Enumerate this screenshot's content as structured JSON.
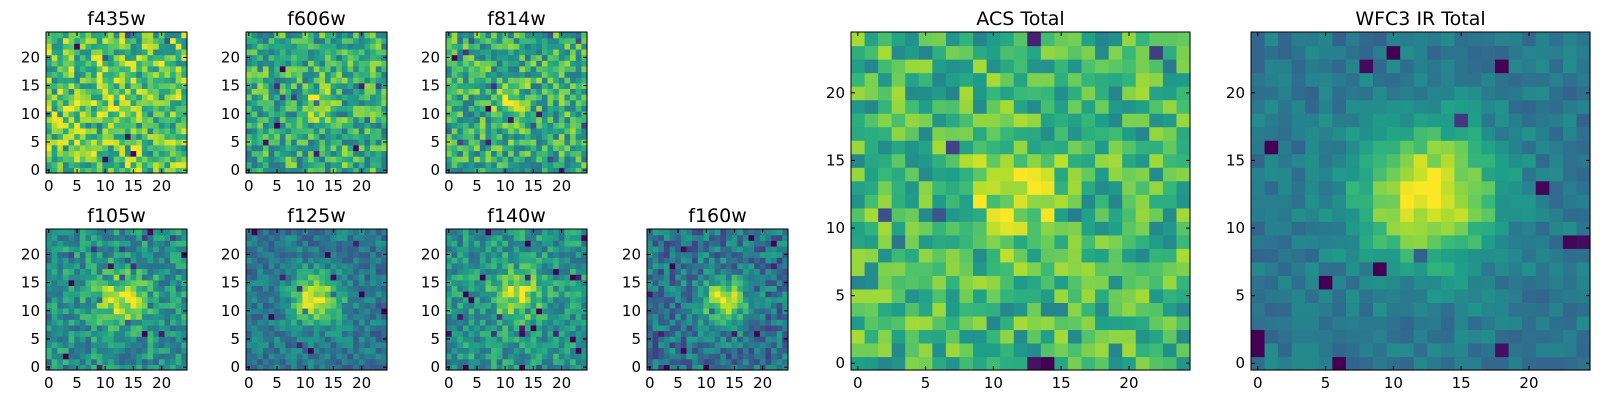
{
  "chart_data": {
    "type": "heatmap",
    "colormap": "viridis",
    "colors": {
      "low": "#440154",
      "mid": "#21918c",
      "high": "#fde725"
    },
    "grid_size": 25,
    "panels": [
      {
        "id": "f435w",
        "title": "f435w",
        "xlim": [
          0,
          24
        ],
        "ylim": [
          0,
          24
        ],
        "xticks": [
          0,
          5,
          10,
          15,
          20
        ],
        "xtick_labels": [
          "0",
          "5",
          "10",
          "15",
          "20"
        ],
        "yticks": [
          0,
          5,
          10,
          15,
          20
        ],
        "ytick_labels": [
          "0",
          "5",
          "10",
          "15",
          "20"
        ],
        "source": {
          "center": [
            12,
            12
          ],
          "sigma": 3,
          "amplitude": 0.05
        },
        "background": 0.72,
        "noise": 0.55,
        "seed": 11
      },
      {
        "id": "f606w",
        "title": "f606w",
        "xlim": [
          0,
          24
        ],
        "ylim": [
          0,
          24
        ],
        "xticks": [
          0,
          5,
          10,
          15,
          20
        ],
        "xtick_labels": [
          "0",
          "5",
          "10",
          "15",
          "20"
        ],
        "yticks": [
          0,
          5,
          10,
          15,
          20
        ],
        "ytick_labels": [
          "0",
          "5",
          "10",
          "15",
          "20"
        ],
        "source": {
          "center": [
            12,
            12
          ],
          "sigma": 2,
          "amplitude": 0.22
        },
        "background": 0.62,
        "noise": 0.5,
        "seed": 23
      },
      {
        "id": "f814w",
        "title": "f814w",
        "xlim": [
          0,
          24
        ],
        "ylim": [
          0,
          24
        ],
        "xticks": [
          0,
          5,
          10,
          15,
          20
        ],
        "xtick_labels": [
          "0",
          "5",
          "10",
          "15",
          "20"
        ],
        "yticks": [
          0,
          5,
          10,
          15,
          20
        ],
        "ytick_labels": [
          "0",
          "5",
          "10",
          "15",
          "20"
        ],
        "source": {
          "center": [
            11,
            12
          ],
          "sigma": 2,
          "amplitude": 0.28
        },
        "background": 0.62,
        "noise": 0.5,
        "seed": 37
      },
      {
        "id": "f105w",
        "title": "f105w",
        "xlim": [
          0,
          24
        ],
        "ylim": [
          0,
          24
        ],
        "xticks": [
          0,
          5,
          10,
          15,
          20
        ],
        "xtick_labels": [
          "0",
          "5",
          "10",
          "15",
          "20"
        ],
        "yticks": [
          0,
          5,
          10,
          15,
          20
        ],
        "ytick_labels": [
          "0",
          "5",
          "10",
          "15",
          "20"
        ],
        "source": {
          "center": [
            13,
            12
          ],
          "sigma": 3.2,
          "amplitude": 0.42
        },
        "background": 0.5,
        "noise": 0.38,
        "seed": 41
      },
      {
        "id": "f125w",
        "title": "f125w",
        "xlim": [
          0,
          24
        ],
        "ylim": [
          0,
          24
        ],
        "xticks": [
          0,
          5,
          10,
          15,
          20
        ],
        "xtick_labels": [
          "0",
          "5",
          "10",
          "15",
          "20"
        ],
        "yticks": [
          0,
          5,
          10,
          15,
          20
        ],
        "ytick_labels": [
          "0",
          "5",
          "10",
          "15",
          "20"
        ],
        "source": {
          "center": [
            12,
            12
          ],
          "sigma": 3.2,
          "amplitude": 0.55
        },
        "background": 0.4,
        "noise": 0.3,
        "seed": 53
      },
      {
        "id": "f140w",
        "title": "f140w",
        "xlim": [
          0,
          24
        ],
        "ylim": [
          0,
          24
        ],
        "xticks": [
          0,
          5,
          10,
          15,
          20
        ],
        "xtick_labels": [
          "0",
          "5",
          "10",
          "15",
          "20"
        ],
        "yticks": [
          0,
          5,
          10,
          15,
          20
        ],
        "ytick_labels": [
          "0",
          "5",
          "10",
          "15",
          "20"
        ],
        "source": {
          "center": [
            12,
            13
          ],
          "sigma": 3,
          "amplitude": 0.38
        },
        "background": 0.52,
        "noise": 0.36,
        "seed": 67
      },
      {
        "id": "f160w",
        "title": "f160w",
        "xlim": [
          0,
          24
        ],
        "ylim": [
          0,
          24
        ],
        "xticks": [
          0,
          5,
          10,
          15,
          20
        ],
        "xtick_labels": [
          "0",
          "5",
          "10",
          "15",
          "20"
        ],
        "yticks": [
          0,
          5,
          10,
          15,
          20
        ],
        "ytick_labels": [
          "0",
          "5",
          "10",
          "15",
          "20"
        ],
        "source": {
          "center": [
            13,
            12
          ],
          "sigma": 2.8,
          "amplitude": 0.55
        },
        "background": 0.38,
        "noise": 0.4,
        "seed": 79
      },
      {
        "id": "acs-total",
        "title": "ACS Total",
        "xlim": [
          0,
          24
        ],
        "ylim": [
          0,
          24
        ],
        "xticks": [
          0,
          5,
          10,
          15,
          20
        ],
        "xtick_labels": [
          "0",
          "5",
          "10",
          "15",
          "20"
        ],
        "yticks": [
          0,
          5,
          10,
          15,
          20
        ],
        "ytick_labels": [
          "0",
          "5",
          "10",
          "15",
          "20"
        ],
        "source": {
          "center": [
            11.5,
            12
          ],
          "sigma": 2.2,
          "amplitude": 0.3
        },
        "background": 0.66,
        "noise": 0.42,
        "seed": 97
      },
      {
        "id": "wfc3-ir-total",
        "title": "WFC3 IR Total",
        "xlim": [
          0,
          24
        ],
        "ylim": [
          0,
          24
        ],
        "xticks": [
          0,
          5,
          10,
          15,
          20
        ],
        "xtick_labels": [
          "0",
          "5",
          "10",
          "15",
          "20"
        ],
        "yticks": [
          0,
          5,
          10,
          15,
          20
        ],
        "ytick_labels": [
          "0",
          "5",
          "10",
          "15",
          "20"
        ],
        "source": {
          "center": [
            12.5,
            12.5
          ],
          "sigma": 3.6,
          "amplitude": 0.6
        },
        "background": 0.4,
        "noise": 0.18,
        "seed": 101
      }
    ]
  }
}
